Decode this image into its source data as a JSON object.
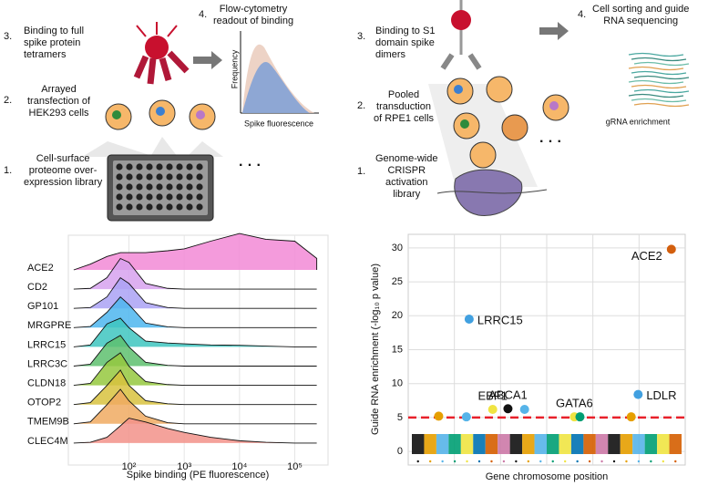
{
  "schematic_left": {
    "steps": [
      {
        "number": "3.",
        "text": "Binding to full\nspike protein\ntetramers"
      },
      {
        "number": "4.",
        "text": "Flow-cytometry\nreadout of binding"
      },
      {
        "number": "2.",
        "text": "Arrayed\ntransfection of\nHEK293 cells"
      },
      {
        "number": "1.",
        "text": "Cell-surface\nproteome over-\nexpression library"
      }
    ],
    "inset_y_label": "Frequency",
    "inset_x_label": "Spike fluorescence",
    "ellipsis": "· · ·"
  },
  "schematic_right": {
    "steps": [
      {
        "number": "3.",
        "text": "Binding to S1\ndomain spike\ndimers"
      },
      {
        "number": "4.",
        "text": "Cell sorting and guide\nRNA sequencing"
      },
      {
        "number": "2.",
        "text": "Pooled\ntransduction\nof RPE1 cells"
      },
      {
        "number": "1.",
        "text": "Genome-wide\nCRISPR\nactivation\nlibrary"
      }
    ],
    "inset_label": "gRNA enrichment",
    "ellipsis": "· · ·"
  },
  "chart_data": [
    {
      "type": "ridgeline",
      "x_label": "Spike binding (PE fluorescence)",
      "log_x": true,
      "xlim": [
        8,
        400000
      ],
      "xticks": [
        {
          "value": 100,
          "label": "10²"
        },
        {
          "value": 1000,
          "label": "10³"
        },
        {
          "value": 10000,
          "label": "10⁴"
        },
        {
          "value": 100000,
          "label": "10⁵"
        }
      ],
      "grid": true,
      "x": [
        10,
        20,
        40,
        70,
        100,
        200,
        500,
        1000,
        3000,
        10000,
        30000,
        100000,
        250000
      ],
      "series": [
        {
          "name": "ACE2",
          "color": "#f28ad6",
          "values": [
            0,
            0.15,
            0.35,
            0.45,
            0.45,
            0.45,
            0.5,
            0.55,
            0.75,
            0.95,
            0.8,
            0.75,
            0.3
          ]
        },
        {
          "name": "CD2",
          "color": "#d7a2ee",
          "values": [
            0,
            0.02,
            0.3,
            0.8,
            0.7,
            0.15,
            0.02,
            0,
            0,
            0,
            0,
            0,
            0
          ]
        },
        {
          "name": "GP101",
          "color": "#aaa2f4",
          "values": [
            0,
            0.02,
            0.3,
            0.8,
            0.65,
            0.15,
            0.02,
            0,
            0,
            0,
            0,
            0,
            0
          ]
        },
        {
          "name": "MRGPRE",
          "color": "#4db6ee",
          "values": [
            0,
            0.03,
            0.4,
            0.8,
            0.6,
            0.12,
            0.02,
            0,
            0,
            0,
            0,
            0,
            0
          ]
        },
        {
          "name": "LRRC15",
          "color": "#3ec6c0",
          "values": [
            0,
            0.05,
            0.6,
            0.75,
            0.5,
            0.15,
            0.1,
            0.08,
            0.05,
            0.04,
            0.02,
            0,
            0
          ]
        },
        {
          "name": "LRRC3C",
          "color": "#5ebf6e",
          "values": [
            0,
            0.05,
            0.6,
            0.8,
            0.5,
            0.1,
            0.02,
            0,
            0,
            0,
            0,
            0,
            0
          ]
        },
        {
          "name": "CLDN18",
          "color": "#95c83e",
          "values": [
            0,
            0.05,
            0.6,
            0.85,
            0.5,
            0.1,
            0.02,
            0,
            0,
            0,
            0,
            0,
            0
          ]
        },
        {
          "name": "OTOP2",
          "color": "#d8c23e",
          "values": [
            0,
            0.05,
            0.5,
            0.9,
            0.5,
            0.1,
            0.02,
            0,
            0,
            0,
            0,
            0,
            0
          ]
        },
        {
          "name": "TMEM9B",
          "color": "#f0aa62",
          "values": [
            0,
            0.05,
            0.5,
            0.9,
            0.6,
            0.2,
            0.03,
            0,
            0,
            0,
            0,
            0,
            0
          ]
        },
        {
          "name": "CLEC4M",
          "color": "#f2928a",
          "values": [
            0,
            0.02,
            0.15,
            0.45,
            0.65,
            0.55,
            0.38,
            0.28,
            0.15,
            0.06,
            0.02,
            0,
            0
          ]
        }
      ]
    },
    {
      "type": "manhattan",
      "x_label": "Gene chromosome position",
      "y_label": "Guide RNA enrichment (-log₁₀ p value)",
      "xlim": [
        0,
        100
      ],
      "ylim": [
        -2,
        32
      ],
      "yticks": [
        0,
        5,
        10,
        15,
        20,
        25,
        30
      ],
      "grid": true,
      "threshold": 5,
      "threshold_color": "#e8202a",
      "chromosome_colors": [
        "#111111",
        "#e69f00",
        "#56b4e9",
        "#009e73",
        "#f0e442",
        "#0072b2",
        "#d55e00",
        "#cc79a7",
        "#111111",
        "#e69f00",
        "#56b4e9",
        "#009e73",
        "#f0e442",
        "#0072b2",
        "#d55e00",
        "#cc79a7",
        "#111111",
        "#e69f00",
        "#56b4e9",
        "#009e73",
        "#f0e442",
        "#d55e00"
      ],
      "x": [
        95,
        22,
        83,
        30.5,
        36,
        42,
        60,
        62,
        11,
        21,
        80.5
      ],
      "values": [
        29.8,
        19.5,
        8.4,
        6.2,
        6.3,
        6.2,
        5.1,
        5.1,
        5.2,
        5.1,
        5.1
      ],
      "colors": [
        "#d35f0e",
        "#41a0e0",
        "#41a0e0",
        "#f0e442",
        "#111111",
        "#56b4e9",
        "#f0e442",
        "#009e73",
        "#e69f00",
        "#56b4e9",
        "#e69f00"
      ],
      "labels": [
        "ACE2",
        "LRRC15",
        "LDLR",
        "EBF1",
        "ABCA1",
        null,
        "GATA6",
        null,
        null,
        null,
        null
      ]
    }
  ]
}
